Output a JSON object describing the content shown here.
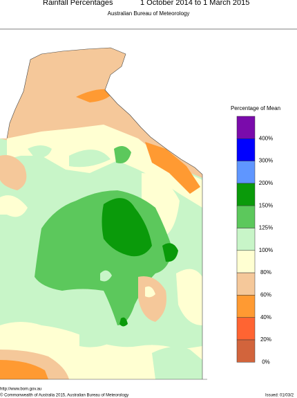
{
  "header": {
    "title": "Rainfall Percentages",
    "period": "1 October 2014 to 1 March 2015",
    "agency": "Australian Bureau of Meteorology"
  },
  "legend": {
    "title": "Percentage of Mean",
    "items": [
      {
        "label": "400%",
        "color": "#7a0bab"
      },
      {
        "label": "300%",
        "color": "#0000ff"
      },
      {
        "label": "200%",
        "color": "#5f96ff"
      },
      {
        "label": "150%",
        "color": "#0a9a0a"
      },
      {
        "label": "125%",
        "color": "#5cc85c"
      },
      {
        "label": "100%",
        "color": "#c8f5c8"
      },
      {
        "label": "80%",
        "color": "#ffffd2"
      },
      {
        "label": "60%",
        "color": "#f5c89a"
      },
      {
        "label": "40%",
        "color": "#ff9a32"
      },
      {
        "label": "20%",
        "color": "#ff6432"
      },
      {
        "label": "0%",
        "color": "#d2643c"
      }
    ]
  },
  "footer": {
    "url": "http://www.bom.gov.au",
    "copyright": "© Commonwealth of Australia 2015, Australian Bureau of Meteorology",
    "issued": "Issued: 01/03/2"
  }
}
